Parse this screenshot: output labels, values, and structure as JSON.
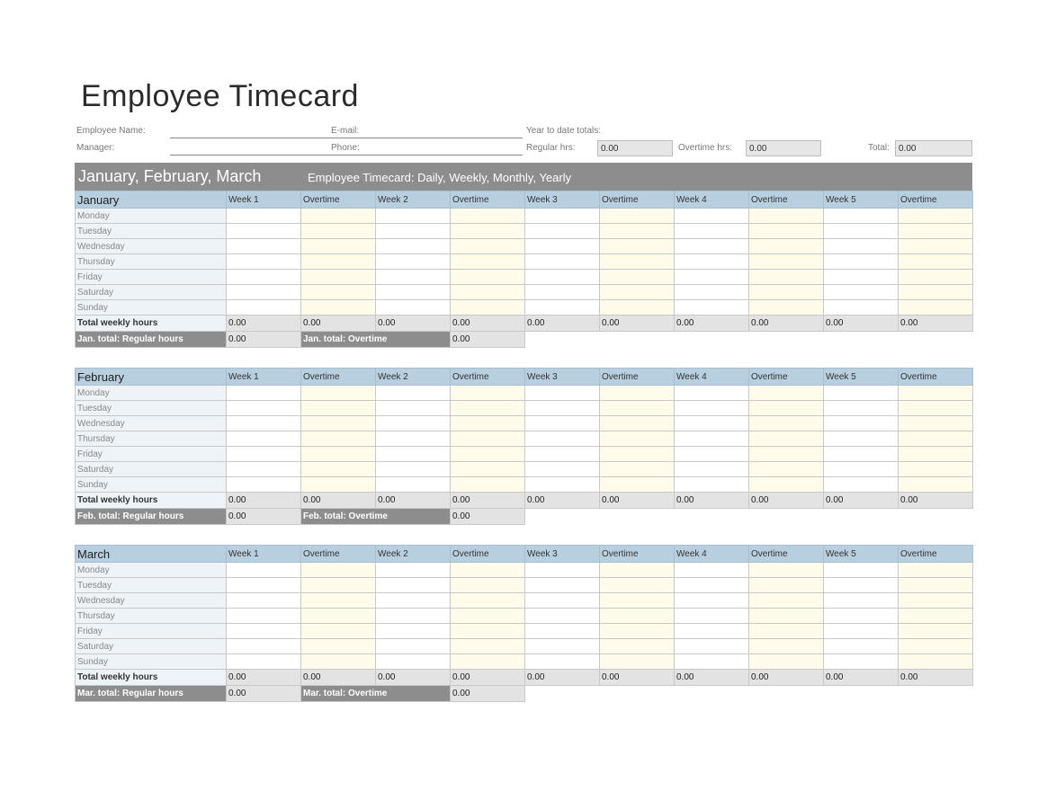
{
  "title": "Employee Timecard",
  "info": {
    "employee_name_label": "Employee Name:",
    "manager_label": "Manager:",
    "email_label": "E-mail:",
    "phone_label": "Phone:",
    "ytd_label": "Year to date totals:",
    "regular_label": "Regular hrs:",
    "regular_value": "0.00",
    "overtime_label": "Overtime hrs:",
    "overtime_value": "0.00",
    "total_label": "Total:",
    "total_value": "0.00"
  },
  "banner": {
    "quarter": "January, February, March",
    "subtitle": "Employee Timecard: Daily, Weekly, Monthly, Yearly"
  },
  "columns": [
    "Week 1",
    "Overtime",
    "Week 2",
    "Overtime",
    "Week 3",
    "Overtime",
    "Week 4",
    "Overtime",
    "Week 5",
    "Overtime"
  ],
  "days": [
    "Monday",
    "Tuesday",
    "Wednesday",
    "Thursday",
    "Friday",
    "Saturday",
    "Sunday"
  ],
  "total_weekly_label": "Total weekly hours",
  "months": [
    {
      "name": "January",
      "weekly_totals": [
        "0.00",
        "0.00",
        "0.00",
        "0.00",
        "0.00",
        "0.00",
        "0.00",
        "0.00",
        "0.00",
        "0.00"
      ],
      "regular_label": "Jan. total: Regular hours",
      "regular_value": "0.00",
      "overtime_label": "Jan. total: Overtime",
      "overtime_value": "0.00"
    },
    {
      "name": "February",
      "weekly_totals": [
        "0.00",
        "0.00",
        "0.00",
        "0.00",
        "0.00",
        "0.00",
        "0.00",
        "0.00",
        "0.00",
        "0.00"
      ],
      "regular_label": "Feb. total: Regular hours",
      "regular_value": "0.00",
      "overtime_label": "Feb. total: Overtime",
      "overtime_value": "0.00"
    },
    {
      "name": "March",
      "weekly_totals": [
        "0.00",
        "0.00",
        "0.00",
        "0.00",
        "0.00",
        "0.00",
        "0.00",
        "0.00",
        "0.00",
        "0.00"
      ],
      "regular_label": "Mar. total: Regular hours",
      "regular_value": "0.00",
      "overtime_label": "Mar. total: Overtime",
      "overtime_value": "0.00"
    }
  ]
}
